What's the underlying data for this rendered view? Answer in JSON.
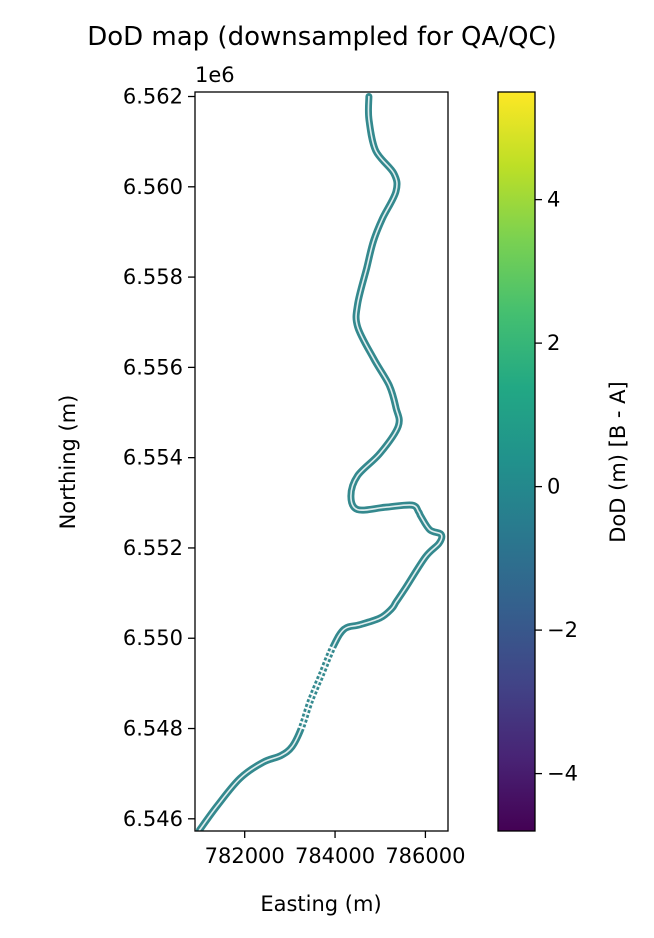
{
  "chart_data": {
    "type": "heatmap",
    "title": "DoD map (downsampled for QA/QC)",
    "xlabel": "Easting (m)",
    "ylabel": "Northing (m)",
    "x_ticks": [
      "782000",
      "784000",
      "786000"
    ],
    "y_ticks": [
      "6.546",
      "6.548",
      "6.550",
      "6.552",
      "6.554",
      "6.556",
      "6.558",
      "6.560",
      "6.562"
    ],
    "y_tick_values": [
      6.546,
      6.548,
      6.55,
      6.552,
      6.554,
      6.556,
      6.558,
      6.56,
      6.562
    ],
    "x_tick_values": [
      782000,
      784000,
      786000
    ],
    "y_offset_label": "1e6",
    "xlim": [
      780900,
      786500
    ],
    "ylim": [
      6.54573,
      6.5621
    ],
    "colorbar": {
      "label": "DoD (m) [B - A]",
      "colormap": "viridis",
      "range": [
        -4.8,
        5.5
      ],
      "ticks": [
        "−4",
        "−2",
        "0",
        "2",
        "4"
      ],
      "tick_values": [
        -4,
        -2,
        0,
        2,
        4
      ]
    },
    "river_centerline_x": [
      781000,
      781400,
      781900,
      782400,
      782800,
      783050,
      783250,
      783450,
      783700,
      783950,
      784200,
      784550,
      785000,
      785250,
      785350,
      785550,
      786000,
      786300,
      786350,
      786100,
      785900,
      785850,
      785700,
      785100,
      784500,
      784350,
      784500,
      785000,
      785400,
      785350,
      785200,
      784850,
      784500,
      784500,
      784700,
      784850,
      785050,
      785350,
      785300,
      784900,
      784750,
      784750
    ],
    "river_centerline_y": [
      6.54575,
      6.5463,
      6.5469,
      6.54725,
      6.5474,
      6.5476,
      6.548,
      6.5486,
      6.5492,
      6.5498,
      6.5502,
      6.5503,
      6.55045,
      6.55065,
      6.5508,
      6.5511,
      6.5518,
      6.5521,
      6.5523,
      6.5524,
      6.5527,
      6.5528,
      6.55295,
      6.5529,
      6.55285,
      6.55315,
      6.5536,
      6.5541,
      6.5547,
      6.5551,
      6.5556,
      6.5562,
      6.5569,
      6.5574,
      6.5582,
      6.5588,
      6.5593,
      6.5599,
      6.5603,
      6.5608,
      6.5615,
      6.562
    ],
    "river_dod_value": 0.1,
    "colors": {
      "river": "#34898e",
      "axes": "#000000",
      "background": "#ffffff"
    }
  }
}
